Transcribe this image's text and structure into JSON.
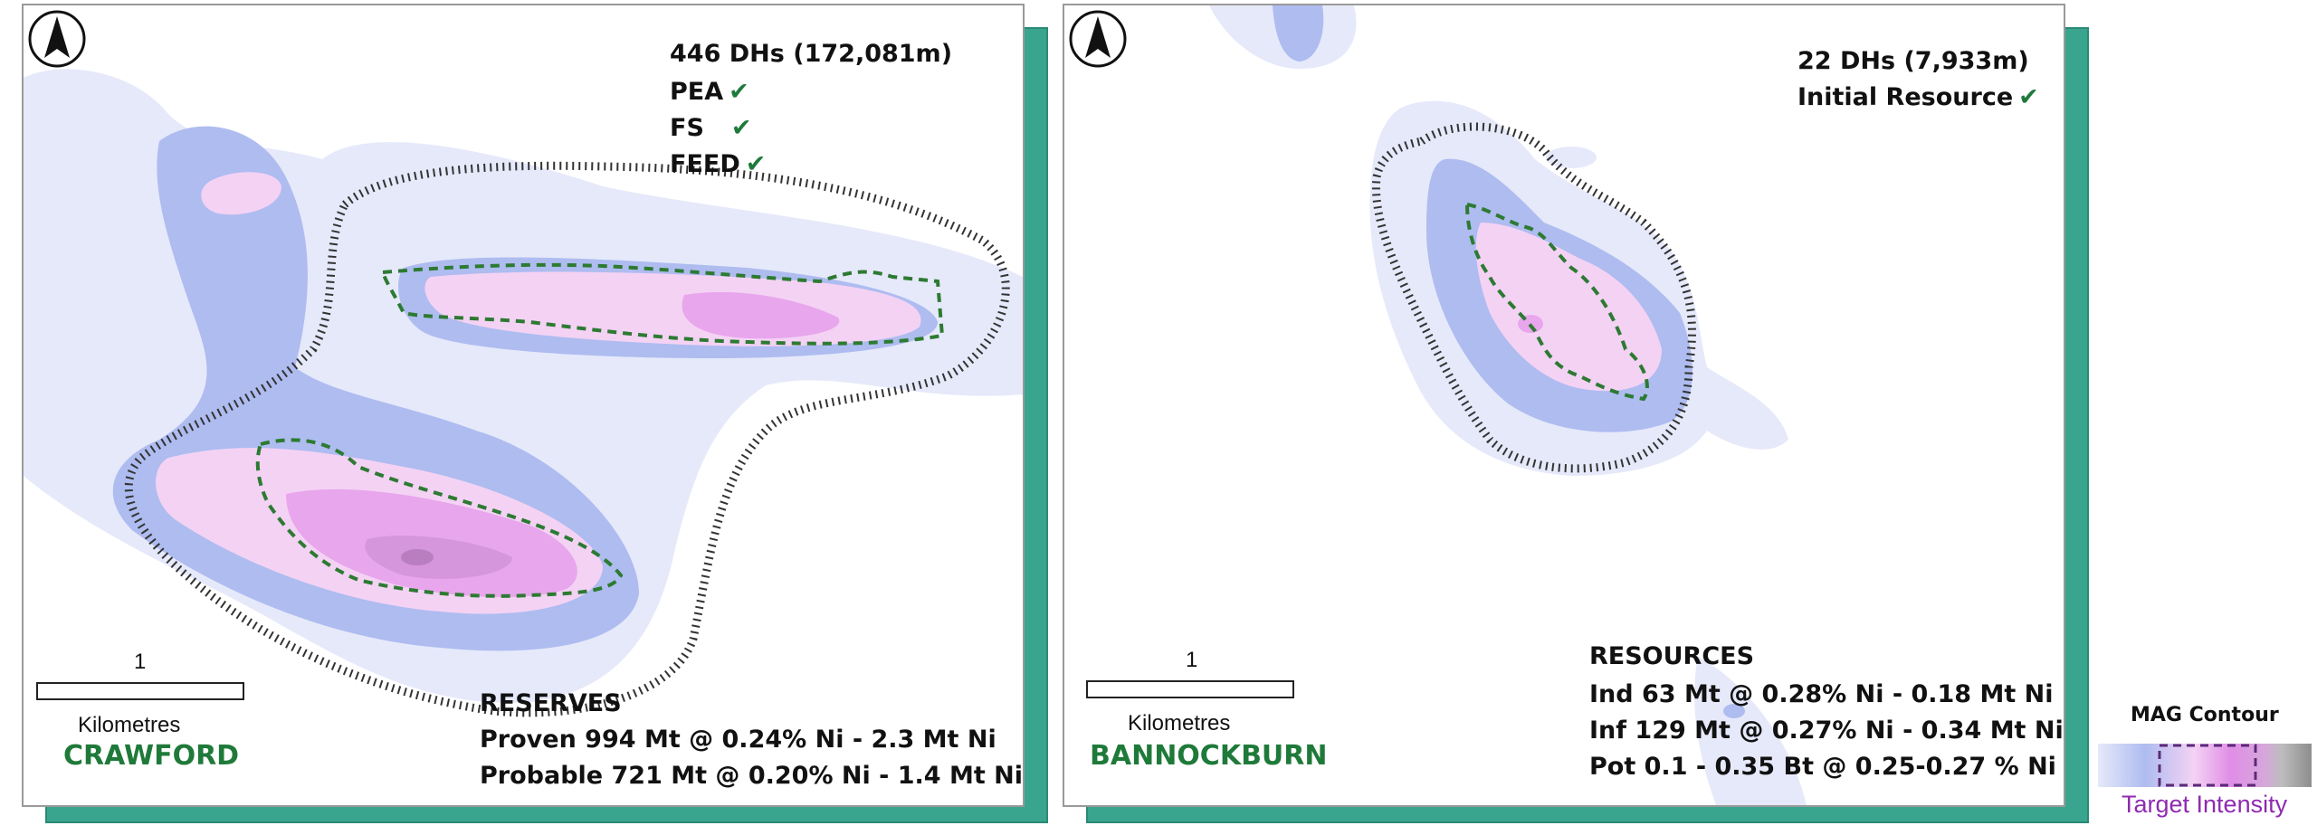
{
  "crawford": {
    "name": "CRAWFORD",
    "drillholes": "446 DHs (172,081m)",
    "milestones": [
      {
        "label": "PEA",
        "check": "✔"
      },
      {
        "label": "FS",
        "check": "✔"
      },
      {
        "label": "FEED",
        "check": "✔"
      }
    ],
    "reserves_title": "RESERVES",
    "reserves": [
      "Proven 994 Mt @ 0.24% Ni - 2.3 Mt Ni",
      "Probable 721 Mt @ 0.20% Ni - 1.4 Mt Ni"
    ],
    "scale_value": "1",
    "scale_unit": "Kilometres"
  },
  "bannockburn": {
    "name": "BANNOCKBURN",
    "drillholes": "22 DHs (7,933m)",
    "milestones": [
      {
        "label": "Initial Resource",
        "check": "✔"
      }
    ],
    "resources_title": "RESOURCES",
    "resources": [
      "Ind 63 Mt @ 0.28% Ni - 0.18 Mt Ni",
      "Inf 129 Mt @ 0.27% Ni - 0.34 Mt Ni",
      "Pot 0.1 - 0.35 Bt @ 0.25-0.27 % Ni"
    ],
    "scale_value": "1",
    "scale_unit": "Kilometres"
  },
  "legend": {
    "title": "MAG Contour",
    "caption": "Target Intensity"
  },
  "colors": {
    "contour_pale": "#e6e9fa",
    "contour_blue": "#aebcf0",
    "contour_pink": "#f4d2f4",
    "contour_magenta": "#e8a6ec",
    "contour_core": "#c98ad4",
    "boundary": "#333333",
    "resource_outline": "#2d7a32",
    "panel_frame": "#3aa58f",
    "name_green": "#1f7a3a",
    "check_green": "#1e7a3c"
  }
}
